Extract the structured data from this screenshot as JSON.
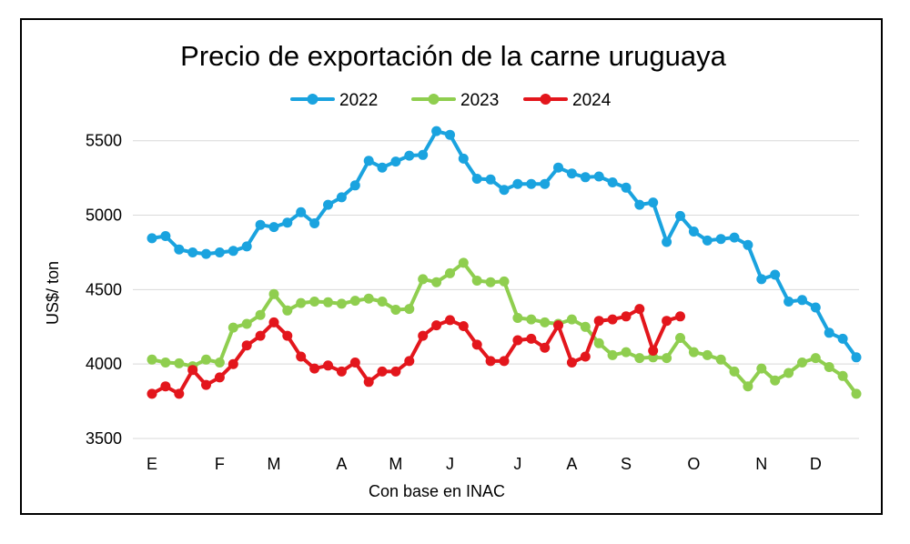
{
  "chart_data": {
    "type": "line",
    "title": "Precio de exportación de la carne uruguaya",
    "xlabel": "Con base en INAC",
    "ylabel": "US$/ ton",
    "ylim": [
      3500,
      5700
    ],
    "yticks": [
      3500,
      4000,
      4500,
      5000,
      5500
    ],
    "xlim": [
      1,
      53
    ],
    "x_unit": "week of year",
    "x_tick_labels": [
      {
        "label": "E",
        "x": 1
      },
      {
        "label": "F",
        "x": 6
      },
      {
        "label": "M",
        "x": 10
      },
      {
        "label": "A",
        "x": 15
      },
      {
        "label": "M",
        "x": 19
      },
      {
        "label": "J",
        "x": 23
      },
      {
        "label": "J",
        "x": 28
      },
      {
        "label": "A",
        "x": 32
      },
      {
        "label": "S",
        "x": 36
      },
      {
        "label": "O",
        "x": 41
      },
      {
        "label": "N",
        "x": 46
      },
      {
        "label": "D",
        "x": 50
      }
    ],
    "grid": "horizontal",
    "legend_position": "top-center",
    "series": [
      {
        "name": "2022",
        "color": "#1aa3df",
        "x_start": 1,
        "values": [
          4845,
          4860,
          4770,
          4750,
          4740,
          4750,
          4760,
          4790,
          4935,
          4920,
          4950,
          5020,
          4945,
          5070,
          5120,
          5200,
          5365,
          5320,
          5360,
          5400,
          5405,
          5565,
          5540,
          5380,
          5245,
          5240,
          5170,
          5210,
          5210,
          5210,
          5320,
          5280,
          5255,
          5260,
          5220,
          5185,
          5070,
          5085,
          4820,
          4995,
          4890,
          4830,
          4840,
          4850,
          4800,
          4570,
          4600,
          4420,
          4430,
          4380,
          4210,
          4170,
          4045
        ]
      },
      {
        "name": "2023",
        "color": "#8fce4f",
        "x_start": 1,
        "values": [
          4030,
          4010,
          4005,
          3985,
          4030,
          4010,
          4245,
          4270,
          4330,
          4470,
          4360,
          4410,
          4420,
          4415,
          4405,
          4425,
          4440,
          4420,
          4365,
          4370,
          4570,
          4550,
          4610,
          4680,
          4560,
          4550,
          4555,
          4310,
          4300,
          4280,
          4270,
          4300,
          4250,
          4140,
          4060,
          4080,
          4040,
          4045,
          4040,
          4175,
          4080,
          4060,
          4030,
          3950,
          3850,
          3970,
          3890,
          3940,
          4010,
          4040,
          3980,
          3920,
          3800
        ]
      },
      {
        "name": "2024",
        "color": "#e3161c",
        "x_start": 1,
        "values": [
          3800,
          3850,
          3800,
          3960,
          3860,
          3910,
          4000,
          4125,
          4190,
          4280,
          4190,
          4050,
          3970,
          3990,
          3950,
          4010,
          3880,
          3950,
          3950,
          4020,
          4190,
          4260,
          4295,
          4255,
          4130,
          4020,
          4020,
          4160,
          4170,
          4110,
          4260,
          4010,
          4050,
          4290,
          4300,
          4320,
          4370,
          4090,
          4290,
          4320
        ]
      }
    ]
  }
}
